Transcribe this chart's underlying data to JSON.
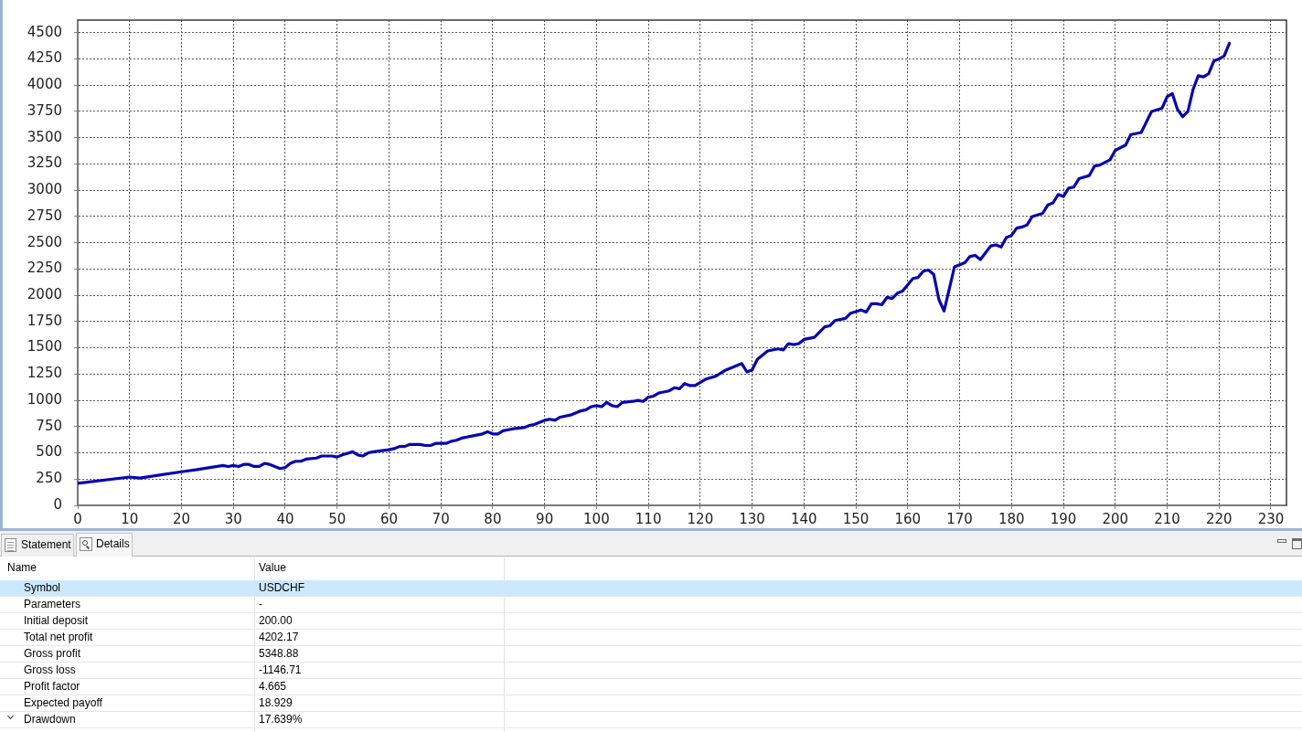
{
  "chart_data": [
    {
      "type": "line",
      "x": [
        0,
        10,
        12,
        16,
        20,
        23,
        28,
        29,
        30,
        31,
        32,
        33,
        34,
        35,
        36,
        37,
        38,
        39,
        40,
        41,
        42,
        43,
        44,
        46,
        47,
        49,
        50,
        51,
        53,
        54,
        55,
        56,
        57,
        60,
        61,
        62,
        63,
        64,
        65,
        66,
        67,
        68,
        69,
        71,
        72,
        73,
        74,
        75,
        76,
        78,
        79,
        80,
        81,
        82,
        83,
        84,
        86,
        87,
        88,
        90,
        91,
        92,
        93,
        95,
        97,
        98,
        99,
        100,
        101,
        102,
        103,
        104,
        105,
        107,
        108,
        109,
        110,
        111,
        112,
        114,
        115,
        116,
        117,
        118,
        119,
        121,
        123,
        125,
        126,
        128,
        129,
        130,
        131,
        133,
        135,
        136,
        137,
        138,
        139,
        140,
        142,
        144,
        145,
        146,
        148,
        149,
        151,
        152,
        153,
        154,
        155,
        156,
        157,
        158,
        159,
        161,
        162,
        163,
        164,
        165,
        166,
        167,
        169,
        171,
        172,
        173,
        174,
        176,
        177,
        178,
        179,
        180,
        181,
        182,
        183,
        184,
        186,
        187,
        188,
        189,
        190,
        191,
        192,
        193,
        195,
        196,
        197,
        199,
        200,
        202,
        203,
        205,
        207,
        209,
        210,
        211,
        212,
        213,
        214,
        215,
        216,
        217,
        218,
        219,
        220,
        221,
        222
      ],
      "values": [
        210,
        270,
        260,
        290,
        320,
        340,
        380,
        370,
        380,
        370,
        390,
        390,
        370,
        370,
        400,
        390,
        370,
        350,
        360,
        400,
        420,
        420,
        440,
        450,
        470,
        470,
        460,
        480,
        510,
        480,
        470,
        500,
        510,
        530,
        540,
        560,
        560,
        580,
        580,
        580,
        570,
        570,
        590,
        590,
        610,
        620,
        640,
        650,
        660,
        680,
        700,
        680,
        680,
        710,
        720,
        730,
        740,
        760,
        770,
        810,
        820,
        810,
        840,
        860,
        900,
        910,
        940,
        950,
        940,
        980,
        950,
        940,
        980,
        990,
        1000,
        990,
        1030,
        1040,
        1070,
        1090,
        1120,
        1110,
        1160,
        1140,
        1140,
        1200,
        1230,
        1290,
        1310,
        1350,
        1270,
        1290,
        1390,
        1470,
        1490,
        1480,
        1540,
        1530,
        1540,
        1580,
        1600,
        1700,
        1710,
        1760,
        1780,
        1830,
        1860,
        1840,
        1920,
        1920,
        1910,
        1980,
        1970,
        2020,
        2040,
        2160,
        2170,
        2230,
        2240,
        2200,
        1960,
        1850,
        2270,
        2310,
        2370,
        2380,
        2340,
        2470,
        2480,
        2460,
        2550,
        2570,
        2640,
        2650,
        2670,
        2750,
        2780,
        2860,
        2880,
        2960,
        2940,
        3020,
        3030,
        3110,
        3140,
        3230,
        3240,
        3290,
        3380,
        3430,
        3530,
        3550,
        3750,
        3780,
        3890,
        3920,
        3770,
        3700,
        3750,
        3960,
        4090,
        4080,
        4110,
        4230,
        4250,
        4280,
        4400
      ],
      "color": "#0606b0",
      "xlim": [
        0,
        233
      ],
      "ylim": [
        0,
        4620
      ],
      "xticks": [
        0,
        10,
        20,
        30,
        40,
        50,
        60,
        70,
        80,
        90,
        100,
        110,
        120,
        130,
        140,
        150,
        160,
        170,
        180,
        190,
        200,
        210,
        220,
        230
      ],
      "yticks": [
        0,
        250,
        500,
        750,
        1000,
        1250,
        1500,
        1750,
        2000,
        2250,
        2500,
        2750,
        3000,
        3250,
        3500,
        3750,
        4000,
        4250,
        4500
      ],
      "grid": true,
      "marker": "none",
      "line_style": "solid"
    },
    {
      "type": "other",
      "annotations": [
        "Statement",
        "Details",
        "Name",
        "Value"
      ],
      "categories": [
        "Symbol",
        "Parameters",
        "Initial deposit",
        "Total net profit",
        "Gross profit",
        "Gross loss",
        "Profit factor",
        "Expected payoff",
        "Drawdown"
      ],
      "value_labels": [
        "USDCHF",
        "-",
        "200.00",
        "4202.17",
        "5348.88",
        "-1146.71",
        "4.665",
        "18.929",
        "17.639%"
      ]
    }
  ]
}
